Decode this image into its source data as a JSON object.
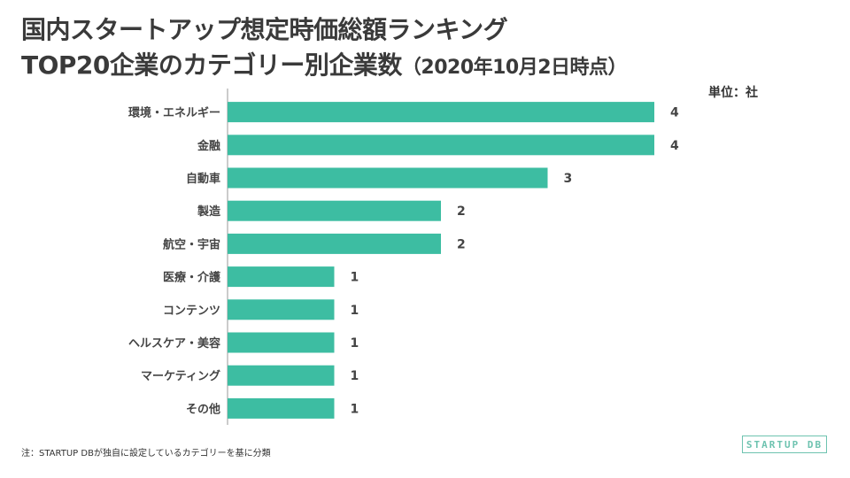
{
  "title_line1": "国内スタートアップ想定時価総額ランキング",
  "title_line2_main": "TOP20企業のカテゴリー別企業数",
  "title_line2_sub": "（2020年10月2日時点）",
  "unit_label": "単位：社",
  "footnote": "注：STARTUP DBが独自に設定しているカテゴリーを基に分類",
  "logo_text": "STARTUP DB",
  "colors": {
    "bar": "#3dbda2",
    "axis": "#999999"
  },
  "chart_data": {
    "type": "bar",
    "orientation": "horizontal",
    "title": "国内スタートアップ想定時価総額ランキング TOP20企業のカテゴリー別企業数（2020年10月2日時点）",
    "unit": "単位：社",
    "categories": [
      "環境・エネルギー",
      "金融",
      "自動車",
      "製造",
      "航空・宇宙",
      "医療・介護",
      "コンテンツ",
      "ヘルスケア・美容",
      "マーケティング",
      "その他"
    ],
    "values": [
      4,
      4,
      3,
      2,
      2,
      1,
      1,
      1,
      1,
      1
    ],
    "xlim": [
      0,
      4
    ]
  }
}
